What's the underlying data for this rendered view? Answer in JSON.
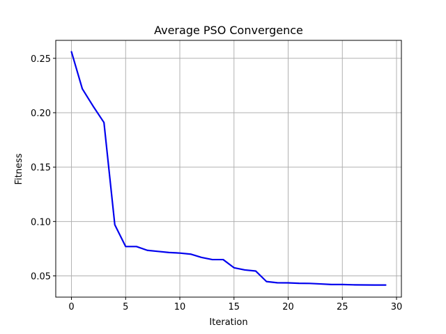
{
  "chart_data": {
    "type": "line",
    "title": "Average PSO Convergence",
    "xlabel": "Iteration",
    "ylabel": "Fitness",
    "xlim": [
      -1.45,
      30.45
    ],
    "ylim": [
      0.0305,
      0.2665
    ],
    "grid": true,
    "xticks": [
      0,
      5,
      10,
      15,
      20,
      25,
      30
    ],
    "xtick_labels": [
      "0",
      "5",
      "10",
      "15",
      "20",
      "25",
      "30"
    ],
    "yticks": [
      0.05,
      0.1,
      0.15,
      0.2,
      0.25
    ],
    "ytick_labels": [
      "0.05",
      "0.10",
      "0.15",
      "0.20",
      "0.25"
    ],
    "series": [
      {
        "color": "#0000ee",
        "x": [
          0,
          1,
          2,
          3,
          4,
          5,
          6,
          7,
          8,
          9,
          10,
          11,
          12,
          13,
          14,
          15,
          16,
          17,
          18,
          19,
          20,
          21,
          22,
          23,
          24,
          25,
          26,
          27,
          28,
          29
        ],
        "values": [
          0.256,
          0.222,
          0.206,
          0.191,
          0.097,
          0.077,
          0.077,
          0.0735,
          0.0725,
          0.0715,
          0.071,
          0.07,
          0.067,
          0.065,
          0.065,
          0.0575,
          0.0555,
          0.0545,
          0.0448,
          0.0437,
          0.0436,
          0.0432,
          0.0431,
          0.0426,
          0.0421,
          0.0421,
          0.0418,
          0.0417,
          0.0416,
          0.0416
        ]
      }
    ]
  }
}
